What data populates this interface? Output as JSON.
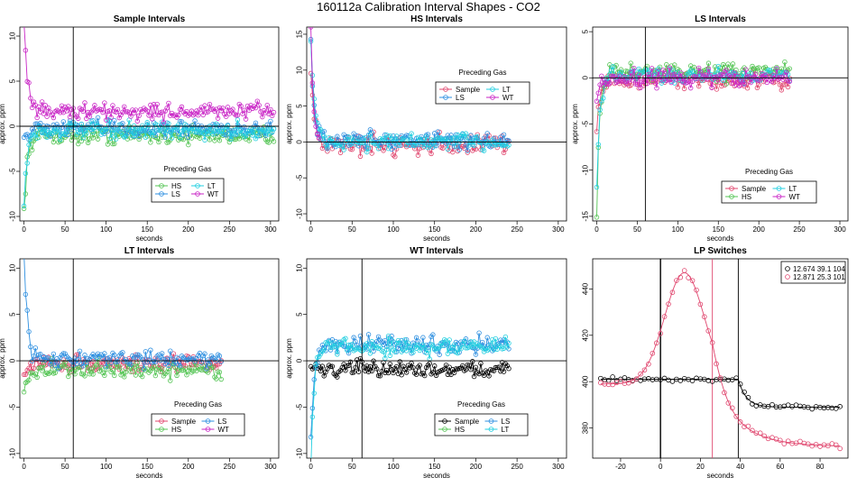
{
  "figure_title": "160112a   Calibration Interval Shapes - CO2",
  "colors": {
    "Sample": "#e0466e",
    "HS": "#53c453",
    "LS": "#2d8fe0",
    "LT": "#22cfe0",
    "WT": "#c926c6",
    "black": "#000000"
  },
  "chart_data": [
    {
      "id": "p1",
      "type": "scatter",
      "title": "Sample Intervals",
      "xlabel": "seconds",
      "ylabel": "approx. ppm",
      "xlim": [
        -5,
        310
      ],
      "ylim": [
        -10.5,
        11
      ],
      "xticks": [
        0,
        50,
        100,
        150,
        200,
        250,
        300
      ],
      "yticks": [
        -10,
        -5,
        0,
        5,
        10
      ],
      "vline": 60,
      "hline": 0,
      "legend_title": "Preceding Gas",
      "legend_pos": "bottom",
      "series": [
        {
          "name": "HS",
          "color": "#53c453",
          "end": 305,
          "level": -1.0,
          "noise": 0.8,
          "start": -9.5,
          "decay": 4
        },
        {
          "name": "LS",
          "color": "#2d8fe0",
          "end": 305,
          "level": -0.3,
          "noise": 0.8,
          "start": -1.0,
          "decay": 4
        },
        {
          "name": "LT",
          "color": "#22cfe0",
          "end": 305,
          "level": -0.5,
          "noise": 0.8,
          "start": -8.5,
          "decay": 4
        },
        {
          "name": "WT",
          "color": "#c926c6",
          "end": 305,
          "level": 1.6,
          "noise": 0.8,
          "start": 11.0,
          "decay": 5
        }
      ]
    },
    {
      "id": "p2",
      "type": "scatter",
      "title": "HS Intervals",
      "xlabel": "seconds",
      "ylabel": "approx. ppm",
      "xlim": [
        -5,
        310
      ],
      "ylim": [
        -11,
        16
      ],
      "xticks": [
        0,
        50,
        100,
        150,
        200,
        250,
        300
      ],
      "yticks": [
        -10,
        -5,
        0,
        5,
        10,
        15
      ],
      "vline": null,
      "hline": 0,
      "legend_title": "Preceding Gas",
      "legend_pos": "top",
      "series": [
        {
          "name": "Sample",
          "color": "#e0466e",
          "end": 240,
          "level": -0.3,
          "noise": 1.2,
          "start": 11.0,
          "decay": 4
        },
        {
          "name": "LS",
          "color": "#2d8fe0",
          "end": 240,
          "level": 0.2,
          "noise": 1.1,
          "start": 13.5,
          "decay": 4
        },
        {
          "name": "LT",
          "color": "#22cfe0",
          "end": 240,
          "level": 0.0,
          "noise": 1.0,
          "start": 14.0,
          "decay": 4
        },
        {
          "name": "WT",
          "color": "#c926c6",
          "end": 10,
          "level": 0.0,
          "noise": 0.0,
          "start": 16.0,
          "decay": 3
        }
      ]
    },
    {
      "id": "p3",
      "type": "scatter",
      "title": "LS Intervals",
      "xlabel": "seconds",
      "ylabel": "approx. ppm",
      "xlim": [
        -5,
        310
      ],
      "ylim": [
        -15.5,
        5.5
      ],
      "xticks": [
        0,
        50,
        100,
        150,
        200,
        250,
        300
      ],
      "yticks": [
        -15,
        -10,
        -5,
        0,
        5
      ],
      "vline": 60,
      "hline": 0,
      "legend_title": "Preceding Gas",
      "legend_pos": "bottom",
      "series": [
        {
          "name": "Sample",
          "color": "#e0466e",
          "end": 238,
          "level": -0.3,
          "noise": 0.8,
          "start": -5.0,
          "decay": 4
        },
        {
          "name": "HS",
          "color": "#53c453",
          "end": 238,
          "level": 0.6,
          "noise": 0.8,
          "start": -14.0,
          "decay": 4
        },
        {
          "name": "LT",
          "color": "#22cfe0",
          "end": 238,
          "level": 0.3,
          "noise": 0.7,
          "start": -12.0,
          "decay": 4
        },
        {
          "name": "WT",
          "color": "#c926c6",
          "end": 238,
          "level": 0.0,
          "noise": 0.8,
          "start": -3.0,
          "decay": 4
        }
      ]
    },
    {
      "id": "p4",
      "type": "scatter",
      "title": "LT Intervals",
      "xlabel": "seconds",
      "ylabel": "approx. ppm",
      "xlim": [
        -5,
        310
      ],
      "ylim": [
        -10.5,
        11
      ],
      "xticks": [
        0,
        50,
        100,
        150,
        200,
        250,
        300
      ],
      "yticks": [
        -10,
        -5,
        0,
        5,
        10
      ],
      "vline": 60,
      "hline": 0,
      "legend_title": "Preceding Gas",
      "legend_pos": "bottom",
      "series": [
        {
          "name": "Sample",
          "color": "#e0466e",
          "end": 240,
          "level": -0.3,
          "noise": 0.7,
          "start": -2.0,
          "decay": 4
        },
        {
          "name": "HS",
          "color": "#53c453",
          "end": 240,
          "level": -1.0,
          "noise": 0.8,
          "start": -3.5,
          "decay": 4
        },
        {
          "name": "LS",
          "color": "#2d8fe0",
          "end": 240,
          "level": 0.2,
          "noise": 0.7,
          "start": 12.0,
          "decay": 4
        },
        {
          "name": "WT",
          "color": "#c926c6",
          "end": 0,
          "level": 0.0,
          "noise": 0.0,
          "start": 0,
          "decay": 3
        }
      ]
    },
    {
      "id": "p5",
      "type": "scatter",
      "title": "WT Intervals",
      "xlabel": "seconds",
      "ylabel": "approx. ppm",
      "xlim": [
        -5,
        310
      ],
      "ylim": [
        -10.5,
        11
      ],
      "xticks": [
        0,
        50,
        100,
        150,
        200,
        250,
        300
      ],
      "yticks": [
        -10,
        -5,
        0,
        5,
        10
      ],
      "vline": 62,
      "hline": 0,
      "legend_title": "Preceding Gas",
      "legend_pos": "bottom",
      "series": [
        {
          "name": "Sample",
          "color": "#000000",
          "end": 240,
          "level": -0.9,
          "noise": 0.7,
          "start": -0.5,
          "decay": 4
        },
        {
          "name": "HS",
          "color": "#53c453",
          "end": 0,
          "level": 0.0,
          "noise": 0.0,
          "start": 0,
          "decay": 3
        },
        {
          "name": "LS",
          "color": "#2d8fe0",
          "end": 240,
          "level": 1.8,
          "noise": 0.8,
          "start": -9.0,
          "decay": 4
        },
        {
          "name": "LT",
          "color": "#22cfe0",
          "end": 240,
          "level": 1.5,
          "noise": 0.9,
          "start": -11.0,
          "decay": 4
        }
      ]
    },
    {
      "id": "p6",
      "type": "line",
      "title": "LP Switches",
      "xlabel": "seconds",
      "ylabel": "",
      "xlim": [
        -34,
        94
      ],
      "ylim": [
        367,
        453
      ],
      "xticks": [
        -20,
        0,
        20,
        40,
        60,
        80
      ],
      "yticks": [
        380,
        400,
        420,
        440
      ],
      "vlines": [
        0,
        26,
        39
      ],
      "legend_pos": "top-right",
      "legend": [
        "12.674 39.1 104",
        "12.871 25.3 101"
      ],
      "series": [
        {
          "name": "12.674 39.1 104",
          "color": "#000000",
          "base": 401,
          "peak_at": 10,
          "rise": 0,
          "drop_at": 39,
          "low": 389
        },
        {
          "name": "12.871 25.3 101",
          "color": "#e0466e",
          "base": 399,
          "peak_at": 12,
          "rise": 48,
          "drop_at": 26,
          "low": 372
        }
      ]
    }
  ]
}
